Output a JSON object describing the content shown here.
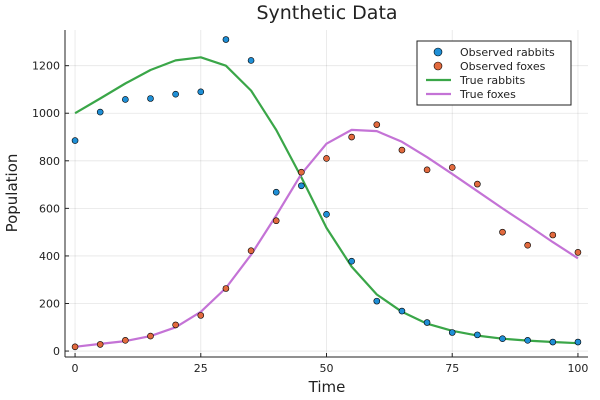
{
  "chart_data": {
    "type": "scatter",
    "title": "Synthetic Data",
    "xlabel": "Time",
    "ylabel": "Population",
    "xlim": [
      -2,
      102
    ],
    "ylim": [
      -25,
      1350
    ],
    "xticks": [
      0,
      25,
      50,
      75,
      100
    ],
    "yticks": [
      0,
      200,
      400,
      600,
      800,
      1000,
      1200
    ],
    "grid": true,
    "legend_position": "top-right",
    "series": [
      {
        "name": "Observed rabbits",
        "kind": "scatter",
        "color": "#1f8fd6",
        "x": [
          0,
          5,
          10,
          15,
          20,
          25,
          30,
          35,
          40,
          45,
          50,
          55,
          60,
          65,
          70,
          75,
          80,
          85,
          90,
          95,
          100
        ],
        "y": [
          885,
          1005,
          1058,
          1062,
          1080,
          1090,
          1310,
          1222,
          668,
          695,
          575,
          378,
          210,
          168,
          120,
          78,
          68,
          52,
          45,
          38,
          38
        ]
      },
      {
        "name": "Observed foxes",
        "kind": "scatter",
        "color": "#e26a3e",
        "x": [
          0,
          5,
          10,
          15,
          20,
          25,
          30,
          35,
          40,
          45,
          50,
          55,
          60,
          65,
          70,
          75,
          80,
          85,
          90,
          95,
          100
        ],
        "y": [
          18,
          28,
          45,
          63,
          110,
          150,
          263,
          422,
          548,
          752,
          810,
          900,
          952,
          845,
          762,
          772,
          702,
          500,
          445,
          488,
          415
        ]
      },
      {
        "name": "True rabbits",
        "kind": "line",
        "color": "#3aa648",
        "x": [
          0,
          5,
          10,
          15,
          20,
          25,
          30,
          35,
          40,
          45,
          50,
          55,
          60,
          65,
          70,
          75,
          80,
          85,
          90,
          95,
          100
        ],
        "y": [
          1000,
          1062,
          1125,
          1182,
          1222,
          1235,
          1200,
          1095,
          930,
          730,
          518,
          355,
          238,
          165,
          115,
          85,
          65,
          52,
          44,
          38,
          33
        ]
      },
      {
        "name": "True foxes",
        "kind": "line",
        "color": "#c473d6",
        "x": [
          0,
          5,
          10,
          15,
          20,
          25,
          30,
          35,
          40,
          45,
          50,
          55,
          60,
          65,
          70,
          75,
          80,
          85,
          90,
          95,
          100
        ],
        "y": [
          18,
          30,
          42,
          63,
          100,
          165,
          265,
          405,
          570,
          745,
          872,
          930,
          925,
          880,
          815,
          745,
          672,
          600,
          530,
          458,
          390
        ]
      }
    ]
  }
}
